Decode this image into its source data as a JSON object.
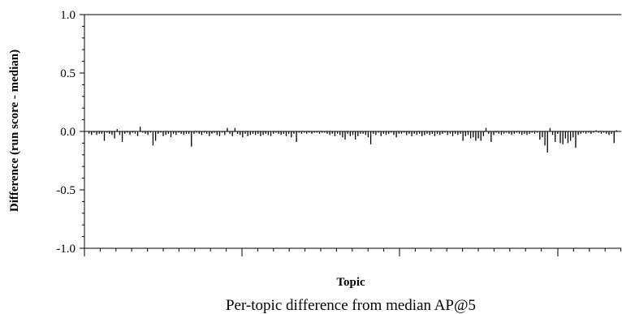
{
  "chart_data": {
    "type": "bar",
    "caption": "Per-topic difference from median AP@5",
    "xlabel": "Topic",
    "ylabel": "Difference (run score - median)",
    "ylim": [
      -1.0,
      1.0
    ],
    "yticks": [
      "1.0",
      "0.5",
      "0.0",
      "-0.5",
      "-1.0"
    ],
    "ytick_values": [
      1.0,
      0.5,
      0.0,
      -0.5,
      -1.0
    ],
    "grid": false,
    "series": [
      {
        "values": [
          -0.02,
          -0.03,
          -0.01,
          -0.03,
          -0.02,
          -0.02,
          -0.08,
          -0.01,
          -0.02,
          -0.03,
          -0.06,
          0.02,
          -0.03,
          -0.09,
          -0.02,
          -0.01,
          -0.03,
          -0.01,
          -0.02,
          -0.04,
          0.04,
          -0.01,
          -0.02,
          -0.03,
          -0.01,
          -0.12,
          -0.08,
          -0.02,
          -0.01,
          -0.04,
          -0.03,
          -0.02,
          -0.05,
          -0.02,
          -0.03,
          -0.01,
          -0.02,
          -0.03,
          -0.02,
          -0.02,
          -0.13,
          -0.02,
          -0.01,
          -0.02,
          -0.03,
          -0.01,
          -0.02,
          -0.04,
          -0.02,
          -0.01,
          -0.03,
          -0.04,
          -0.01,
          -0.03,
          0.03,
          -0.02,
          -0.04,
          0.03,
          -0.02,
          -0.03,
          -0.05,
          -0.02,
          -0.04,
          -0.03,
          -0.02,
          -0.03,
          -0.02,
          -0.04,
          -0.03,
          -0.02,
          -0.03,
          -0.04,
          -0.02,
          -0.01,
          -0.02,
          -0.03,
          -0.02,
          -0.04,
          -0.02,
          -0.05,
          -0.02,
          -0.09,
          -0.01,
          -0.02,
          -0.01,
          -0.02,
          -0.01,
          -0.02,
          -0.01,
          -0.01,
          -0.02,
          -0.01,
          -0.01,
          -0.02,
          -0.03,
          -0.02,
          -0.04,
          -0.02,
          -0.03,
          -0.05,
          -0.07,
          -0.02,
          -0.04,
          -0.03,
          -0.07,
          -0.04,
          -0.02,
          -0.02,
          -0.03,
          -0.05,
          -0.11,
          -0.02,
          -0.03,
          -0.01,
          -0.04,
          -0.02,
          -0.03,
          -0.02,
          -0.01,
          -0.03,
          -0.05,
          -0.02,
          -0.02,
          -0.01,
          -0.03,
          -0.02,
          -0.04,
          -0.02,
          -0.03,
          -0.02,
          -0.04,
          -0.03,
          -0.02,
          -0.03,
          -0.02,
          -0.04,
          -0.02,
          -0.03,
          -0.02,
          -0.01,
          -0.03,
          -0.02,
          -0.04,
          -0.02,
          -0.03,
          -0.02,
          -0.08,
          -0.04,
          -0.03,
          -0.06,
          -0.05,
          -0.08,
          -0.06,
          -0.08,
          -0.04,
          0.03,
          -0.02,
          -0.09,
          -0.03,
          -0.01,
          -0.02,
          -0.03,
          -0.02,
          -0.01,
          -0.02,
          -0.03,
          -0.02,
          -0.01,
          -0.02,
          -0.03,
          -0.02,
          -0.03,
          -0.02,
          -0.01,
          -0.02,
          -0.01,
          -0.07,
          -0.05,
          -0.12,
          -0.18,
          0.03,
          -0.03,
          -0.09,
          -0.02,
          -0.1,
          -0.11,
          -0.06,
          -0.1,
          -0.08,
          -0.05,
          -0.14,
          -0.03,
          -0.02,
          -0.01,
          -0.02,
          -0.01,
          -0.02,
          -0.01,
          0.01,
          -0.01,
          -0.02,
          -0.01,
          -0.02,
          -0.03,
          -0.02,
          -0.1,
          0.01
        ]
      }
    ]
  }
}
